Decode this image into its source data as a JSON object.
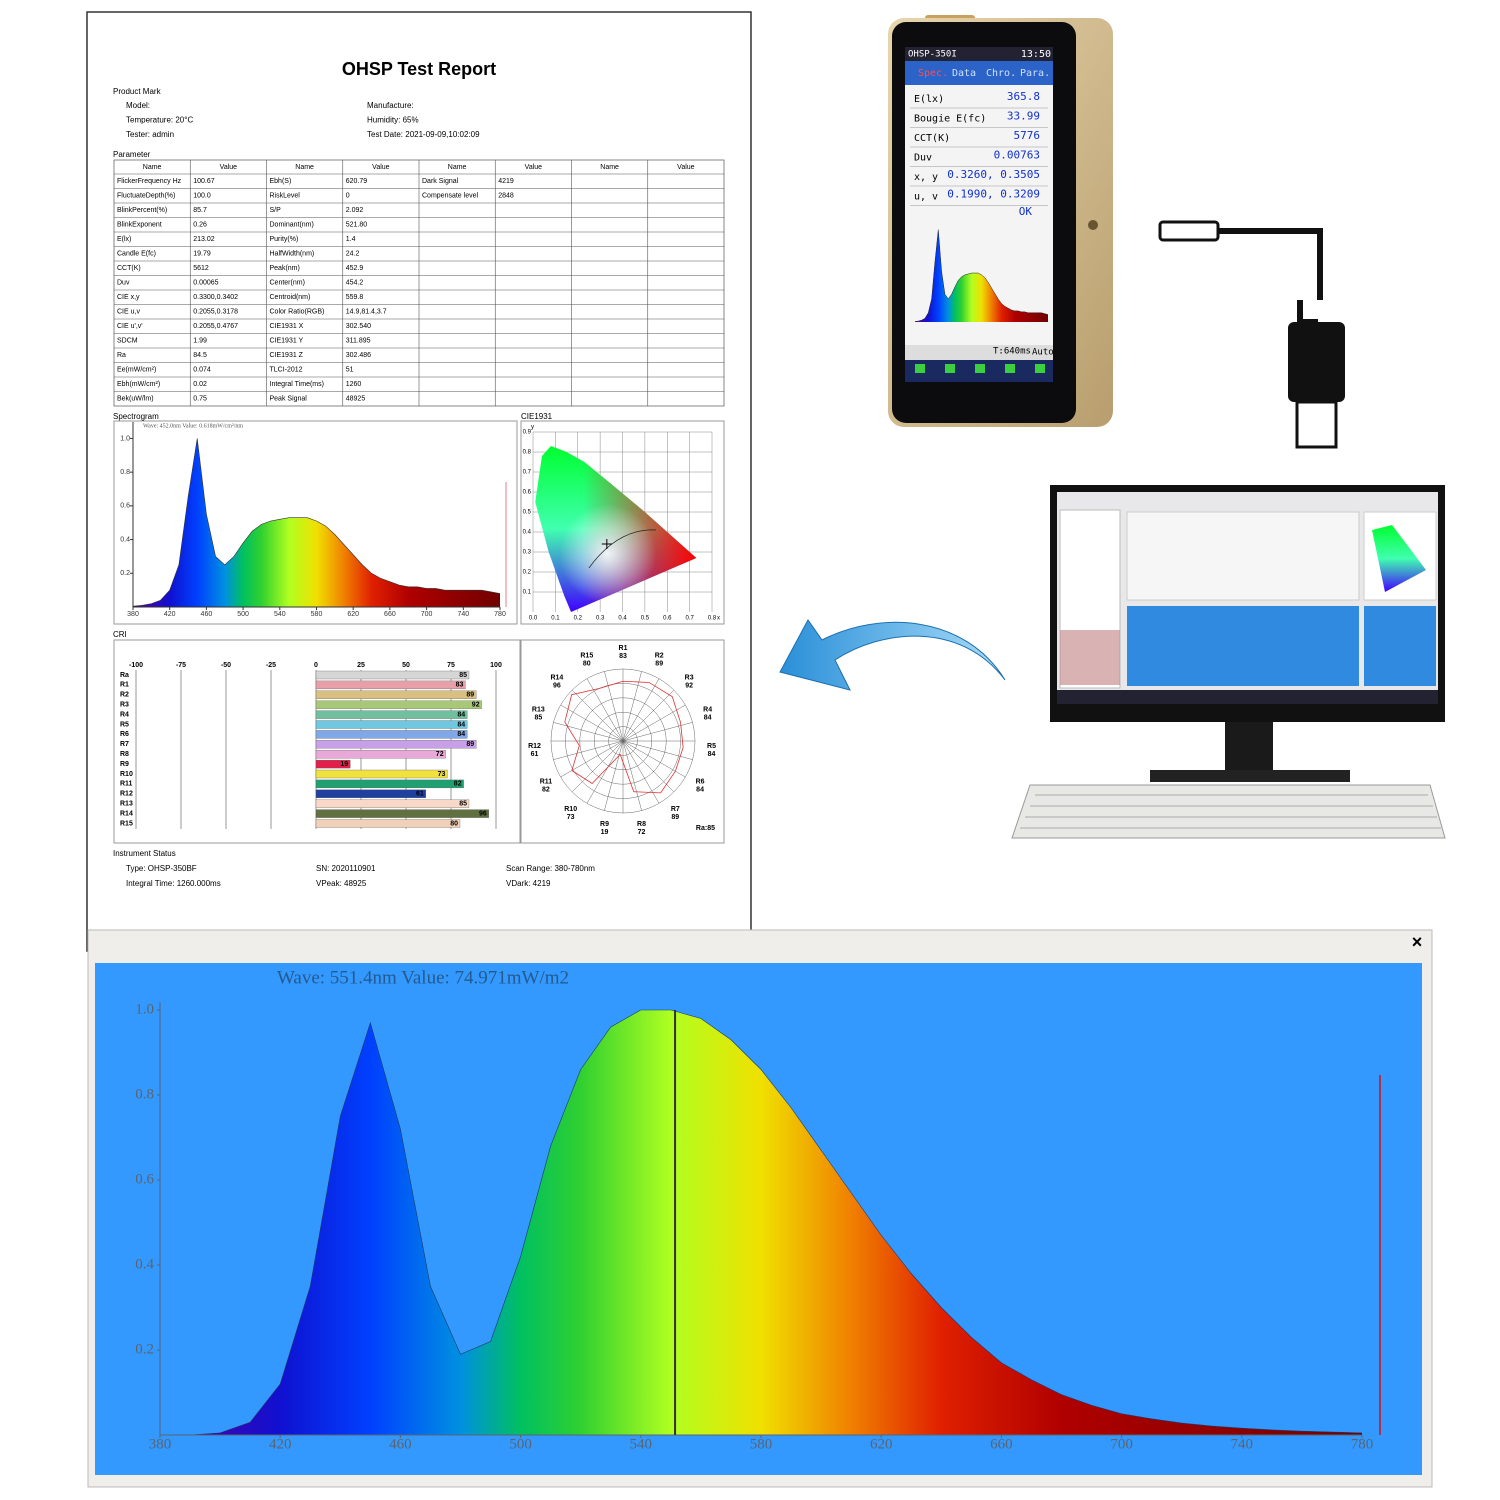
{
  "report": {
    "title": "OHSP Test Report",
    "product_mark": {
      "label": "Product Mark",
      "fields": [
        "Model:",
        "Manufacture:",
        "Temperature: 20°C",
        "Humidity: 65%",
        "Tester: admin",
        "Test Date: 2021-09-09,10:02:09"
      ]
    },
    "parameter": {
      "label": "Parameter",
      "header": [
        "Name",
        "Value",
        "Name",
        "Value",
        "Name",
        "Value",
        "Name",
        "Value"
      ],
      "groups": [
        [
          [
            "FlickerFrequency Hz",
            "100.67"
          ],
          [
            "FluctuateDepth(%)",
            "100.0"
          ],
          [
            "BlinkPercent(%)",
            "85.7"
          ],
          [
            "BlinkExponent",
            "0.26"
          ],
          [
            "E(lx)",
            "213.02"
          ],
          [
            "Candle E(fc)",
            "19.79"
          ],
          [
            "CCT(K)",
            "5612"
          ],
          [
            "Duv",
            "0.00065"
          ],
          [
            "CIE x,y",
            "0.3300,0.3402"
          ],
          [
            "CIE u,v",
            "0.2055,0.3178"
          ],
          [
            "CIE u',v'",
            "0.2055,0.4767"
          ],
          [
            "SDCM",
            "1.99"
          ],
          [
            "Ra",
            "84.5"
          ],
          [
            "Ee(mW/cm²)",
            "0.074"
          ],
          [
            "Ebh(mW/cm²)",
            "0.02"
          ],
          [
            "Bek(uW/lm)",
            "0.75"
          ]
        ],
        [
          [
            "Ebh(S)",
            "620.79"
          ],
          [
            "RiskLevel",
            "0"
          ],
          [
            "S/P",
            "2.092"
          ],
          [
            "Dominant(nm)",
            "521.80"
          ],
          [
            "Purity(%)",
            "1.4"
          ],
          [
            "HalfWidth(nm)",
            "24.2"
          ],
          [
            "Peak(nm)",
            "452.9"
          ],
          [
            "Center(nm)",
            "454.2"
          ],
          [
            "Centroid(nm)",
            "559.8"
          ],
          [
            "Color Ratio(RGB)",
            "14.9,81.4,3.7"
          ],
          [
            "CIE1931 X",
            "302.540"
          ],
          [
            "CIE1931 Y",
            "311.895"
          ],
          [
            "CIE1931 Z",
            "302.486"
          ],
          [
            "TLCI-2012",
            "51"
          ],
          [
            "Integral Time(ms)",
            "1260"
          ],
          [
            "Peak Signal",
            "48925"
          ]
        ],
        [
          [
            "Dark Signal",
            "4219"
          ],
          [
            "Compensate level",
            "2848"
          ]
        ]
      ]
    },
    "spectrogram": {
      "type": "area",
      "title": "Spectrogram",
      "header": "Wave: 452.0nm Value: 0.618mW/cm²/nm",
      "x": [
        380,
        390,
        400,
        410,
        420,
        430,
        440,
        450,
        460,
        470,
        480,
        490,
        500,
        510,
        520,
        530,
        540,
        550,
        560,
        570,
        580,
        590,
        600,
        610,
        620,
        630,
        640,
        650,
        660,
        670,
        680,
        690,
        700,
        710,
        720,
        730,
        740,
        750,
        760,
        770,
        780
      ],
      "values": [
        0.005,
        0.01,
        0.02,
        0.04,
        0.1,
        0.25,
        0.65,
        1.0,
        0.55,
        0.3,
        0.25,
        0.3,
        0.38,
        0.45,
        0.49,
        0.51,
        0.52,
        0.53,
        0.53,
        0.53,
        0.51,
        0.48,
        0.43,
        0.37,
        0.31,
        0.25,
        0.2,
        0.17,
        0.15,
        0.13,
        0.12,
        0.12,
        0.11,
        0.11,
        0.1,
        0.1,
        0.1,
        0.1,
        0.1,
        0.09,
        0.08
      ],
      "xlim": [
        380,
        780
      ],
      "ylim": [
        0,
        1.05
      ],
      "xticks": [
        380,
        420,
        460,
        500,
        540,
        580,
        620,
        660,
        700,
        740,
        780
      ],
      "yticks": [
        0.2,
        0.4,
        0.6,
        0.8,
        {
          "value": 1,
          "label": "1.0"
        }
      ]
    },
    "cie1931": {
      "type": "chromaticity",
      "title": "CIE1931",
      "xlabel": "x",
      "ylabel": "y",
      "xlim": [
        0,
        0.8
      ],
      "ylim": [
        0,
        0.9
      ],
      "xticks": [
        {
          "value": 0,
          "label": "0.0"
        },
        0.1,
        0.2,
        0.3,
        0.4,
        0.5,
        0.6,
        0.7,
        0.8
      ],
      "yticks": [
        0.1,
        0.2,
        0.3,
        0.4,
        0.5,
        0.6,
        0.7,
        0.8,
        0.9
      ],
      "point_x": 0.33,
      "point_y": 0.3402
    },
    "cri": {
      "type": "bar",
      "title": "CRI",
      "categories": [
        "Ra",
        "R1",
        "R2",
        "R3",
        "R4",
        "R5",
        "R6",
        "R7",
        "R8",
        "R9",
        "R10",
        "R11",
        "R12",
        "R13",
        "R14",
        "R15"
      ],
      "values": [
        85,
        83,
        89,
        92,
        84,
        84,
        84,
        89,
        72,
        19,
        73,
        82,
        61,
        85,
        96,
        80
      ],
      "colors": [
        "#d6d6d6",
        "#e8a0a8",
        "#d8c080",
        "#a8c878",
        "#70c0a0",
        "#70c8e0",
        "#80a8e8",
        "#c8a0e8",
        "#e8a8d8",
        "#e0204a",
        "#f0e040",
        "#20a070",
        "#2040a0",
        "#f8d8c8",
        "#607040",
        "#f0d0b8"
      ],
      "xlim": [
        -100,
        100
      ],
      "xticks": [
        -100,
        -75,
        -50,
        -25,
        0,
        25,
        50,
        75,
        100
      ]
    },
    "cri_radar": {
      "type": "radar",
      "rlim": [
        0,
        100
      ],
      "color": "#e03030",
      "label": "Ra:85"
    },
    "instrument_status": {
      "label": "Instrument Status",
      "fields": [
        "Type: OHSP-350BF",
        "SN: 2020110901",
        "Scan Range: 380-780nm",
        "Integral Time: 1260.000ms",
        "VPeak: 48925",
        "VDark: 4219"
      ]
    }
  },
  "device": {
    "model": "OHSP-350I",
    "time": "13:50",
    "tabs": [
      "Spec.",
      "Data",
      "Chro.",
      "Para."
    ],
    "rows": [
      [
        "E(lx)",
        "365.8"
      ],
      [
        "Bougie E(fc)",
        "33.99"
      ],
      [
        "CCT(K)",
        "5776"
      ],
      [
        "Duv",
        "0.00763"
      ],
      [
        "x, y",
        "0.3260, 0.3505"
      ],
      [
        "u, v",
        "0.1990, 0.3209"
      ]
    ],
    "status": "OK",
    "integral": "T:640ms",
    "mode": "Auto"
  },
  "spectrum_window": {
    "type": "area",
    "header": "Wave: 551.4nm Value: 74.971mW/m2",
    "close": "×",
    "cursor": 551.4,
    "x": [
      380,
      390,
      400,
      410,
      420,
      430,
      440,
      450,
      460,
      470,
      480,
      490,
      500,
      510,
      520,
      530,
      540,
      550,
      560,
      570,
      580,
      590,
      600,
      610,
      620,
      630,
      640,
      650,
      660,
      670,
      680,
      690,
      700,
      710,
      720,
      730,
      740,
      750,
      760,
      770,
      780
    ],
    "values": [
      0,
      0,
      0.005,
      0.03,
      0.12,
      0.35,
      0.75,
      0.97,
      0.72,
      0.35,
      0.19,
      0.22,
      0.42,
      0.68,
      0.86,
      0.96,
      1.0,
      1.0,
      0.98,
      0.93,
      0.86,
      0.77,
      0.67,
      0.57,
      0.47,
      0.38,
      0.3,
      0.23,
      0.17,
      0.13,
      0.095,
      0.07,
      0.05,
      0.038,
      0.028,
      0.021,
      0.016,
      0.012,
      0.009,
      0.007,
      0.005
    ],
    "xlim": [
      380,
      780
    ],
    "ylim": [
      0,
      1
    ],
    "xticks": [
      380,
      420,
      460,
      500,
      540,
      580,
      620,
      660,
      700,
      740,
      780
    ],
    "yticks": [
      0.2,
      0.4,
      0.6,
      0.8,
      {
        "value": 1,
        "label": "1.0"
      }
    ]
  }
}
